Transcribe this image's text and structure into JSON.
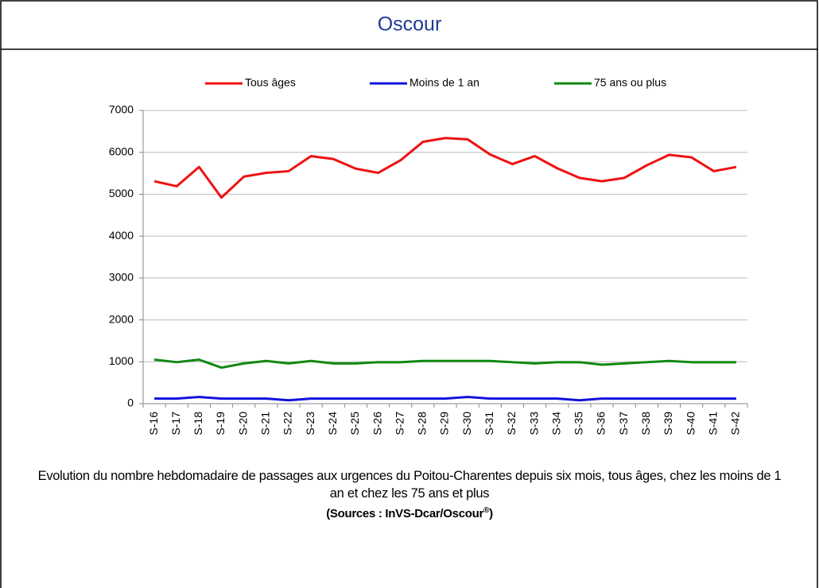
{
  "header": {
    "title": "Oscour"
  },
  "chart_data": {
    "type": "line",
    "categories": [
      "S-16",
      "S-17",
      "S-18",
      "S-19",
      "S-20",
      "S-21",
      "S-22",
      "S-23",
      "S-24",
      "S-25",
      "S-26",
      "S-27",
      "S-28",
      "S-29",
      "S-30",
      "S-31",
      "S-32",
      "S-33",
      "S-34",
      "S-35",
      "S-36",
      "S-37",
      "S-38",
      "S-39",
      "S-40",
      "S-41",
      "S-42"
    ],
    "series": [
      {
        "name": "Tous âges",
        "color": "#ee1111",
        "values": [
          5310,
          5190,
          5650,
          4920,
          5420,
          5510,
          5550,
          5910,
          5840,
          5610,
          5510,
          5810,
          6250,
          6340,
          6310,
          5950,
          5720,
          5910,
          5620,
          5390,
          5310,
          5390,
          5690,
          5940,
          5880,
          5550,
          5650
        ]
      },
      {
        "name": "Moins de 1 an",
        "color": "#1111dd",
        "values": [
          120,
          120,
          160,
          120,
          120,
          120,
          80,
          120,
          120,
          120,
          120,
          120,
          120,
          120,
          160,
          120,
          120,
          120,
          120,
          80,
          120,
          120,
          120,
          120,
          120,
          120,
          120
        ]
      },
      {
        "name": "75 ans ou plus",
        "color": "#118811",
        "values": [
          1050,
          990,
          1050,
          860,
          960,
          1020,
          960,
          1020,
          960,
          960,
          990,
          990,
          1020,
          1020,
          1020,
          1020,
          990,
          960,
          990,
          990,
          930,
          960,
          990,
          1020,
          990,
          990,
          990
        ]
      }
    ],
    "ylim": [
      0,
      7000
    ],
    "yticks": [
      0,
      1000,
      2000,
      3000,
      4000,
      5000,
      6000,
      7000
    ],
    "grid": true,
    "legend": "top"
  },
  "caption": {
    "text": "Evolution du nombre hebdomadaire de passages aux urgences du Poitou-Charentes depuis six mois, tous âges, chez les moins de 1 an et chez les 75 ans  et plus",
    "source_prefix": "(Sources : InVS-Dcar/Oscour",
    "source_mark": "®",
    "source_suffix": ")"
  }
}
